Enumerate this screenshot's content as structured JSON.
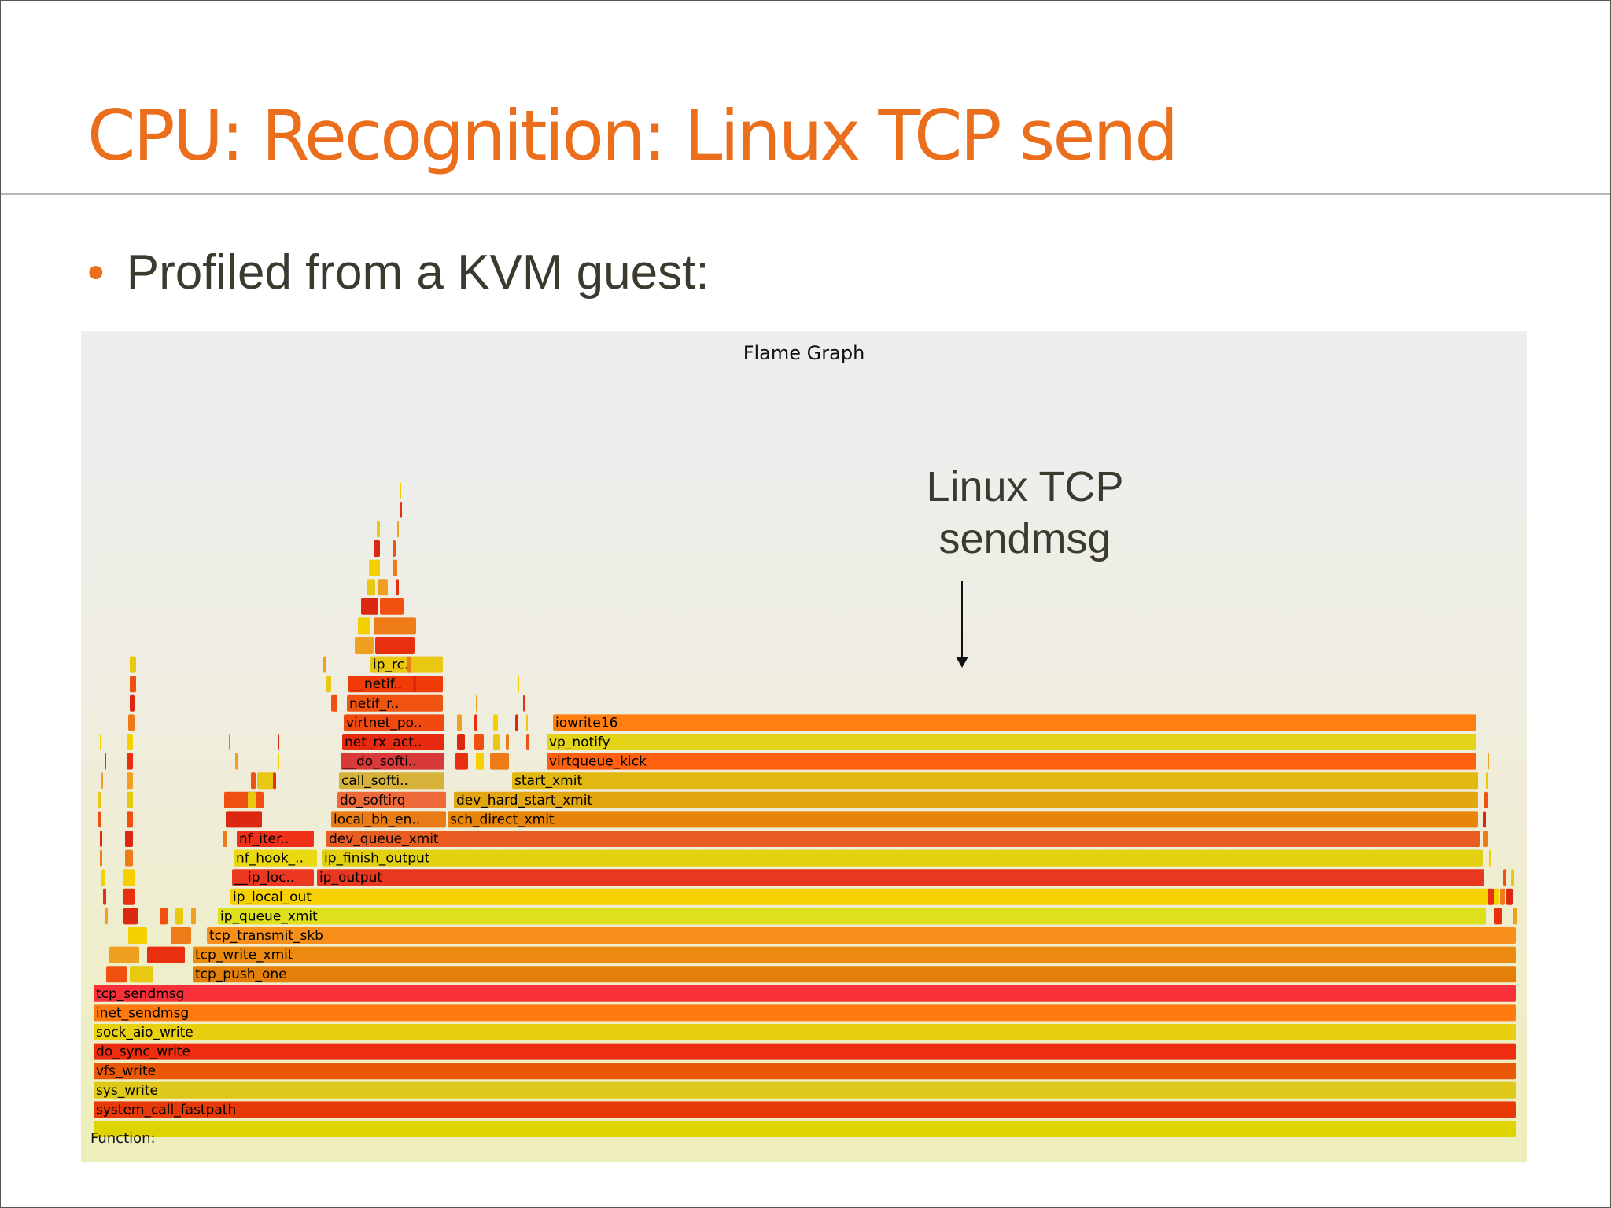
{
  "slide": {
    "title": "CPU: Recognition: Linux TCP send",
    "bullet": "Profiled from a KVM guest:"
  },
  "colors": {
    "accent": "#ea6e1c",
    "text": "#3c3a2e"
  },
  "flamegraph": {
    "title": "Flame Graph",
    "function_label": "Function:",
    "annotation_lines": [
      "Linux TCP",
      "sendmsg"
    ],
    "frames": [
      {
        "label": "system_call_fastpath",
        "color": "#e83a08"
      },
      {
        "label": "sys_write",
        "color": "#dec81a"
      },
      {
        "label": "vfs_write",
        "color": "#e85808"
      },
      {
        "label": "do_sync_write",
        "color": "#ee2c10"
      },
      {
        "label": "sock_aio_write",
        "color": "#e8d010"
      },
      {
        "label": "inet_sendmsg",
        "color": "#ff7a10"
      },
      {
        "label": "tcp_sendmsg",
        "color": "#f7303a"
      },
      {
        "label": "tcp_push_one",
        "color": "#e4800a"
      },
      {
        "label": "tcp_write_xmit",
        "color": "#ec8a10"
      },
      {
        "label": "tcp_transmit_skb",
        "color": "#f88f1a"
      },
      {
        "label": "ip_queue_xmit",
        "color": "#dde01a"
      },
      {
        "label": "ip_local_out",
        "color": "#f7d000"
      },
      {
        "label": "ip_output",
        "color": "#e83820"
      },
      {
        "label": "ip_finish_output",
        "color": "#e3d010"
      },
      {
        "label": "dev_queue_xmit",
        "color": "#e95c22"
      },
      {
        "label": "sch_direct_xmit",
        "color": "#e8840a"
      },
      {
        "label": "dev_hard_start_xmit",
        "color": "#e4a610"
      },
      {
        "label": "start_xmit",
        "color": "#e2b810"
      },
      {
        "label": "virtqueue_kick",
        "color": "#ff6010"
      },
      {
        "label": "vp_notify",
        "color": "#e3d41a"
      },
      {
        "label": "iowrite16",
        "color": "#ff8010"
      },
      {
        "label": "__ip_loc..",
        "color": "#ec3820"
      },
      {
        "label": "nf_hook_..",
        "color": "#ead810"
      },
      {
        "label": "nf_iter..",
        "color": "#f03018"
      },
      {
        "label": "local_bh_en..",
        "color": "#ea7c18"
      },
      {
        "label": "do_softirq",
        "color": "#ee6a3a"
      },
      {
        "label": "call_softi..",
        "color": "#d6b23a"
      },
      {
        "label": "__do_softi..",
        "color": "#d83a3a"
      },
      {
        "label": "net_rx_act..",
        "color": "#e82a10"
      },
      {
        "label": "virtnet_po..",
        "color": "#f04a10"
      },
      {
        "label": "netif_r..",
        "color": "#f05410"
      },
      {
        "label": "__netif..",
        "color": "#f03a08"
      },
      {
        "label": "ip_rc..",
        "color": "#e8c810"
      }
    ]
  }
}
